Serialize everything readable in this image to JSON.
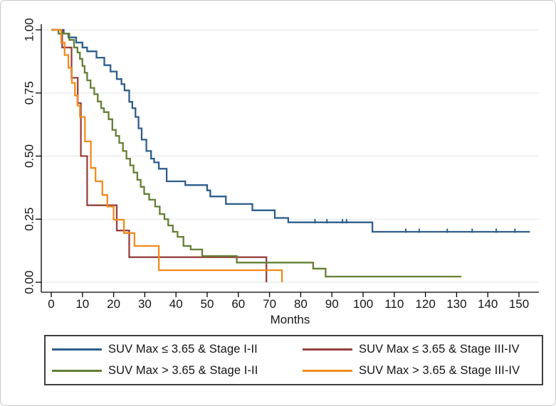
{
  "figure_title": "",
  "chart_data": {
    "type": "line",
    "subtype": "kaplan-meier-step",
    "title": "",
    "xlabel": "Months",
    "ylabel": "",
    "xlim": [
      0,
      157
    ],
    "ylim": [
      0,
      1.0
    ],
    "grid": "horizontal",
    "grid_color": "#e8eaeb",
    "axis_color": "#000000",
    "legend_position": "bottom-box",
    "x_ticks": [
      0,
      10,
      20,
      30,
      40,
      50,
      60,
      70,
      80,
      90,
      100,
      110,
      120,
      130,
      140,
      150
    ],
    "y_ticks": [
      {
        "value": 1.0,
        "label": "1.00"
      },
      {
        "value": 0.75,
        "label": "0.75"
      },
      {
        "value": 0.5,
        "label": "0.50"
      },
      {
        "value": 0.25,
        "label": "0.25"
      },
      {
        "value": 0.0,
        "label": "0.00"
      }
    ],
    "series": [
      {
        "name": "suv-le-3-65-stage-1-2",
        "label": "SUV Max ≤ 3.65 & Stage I-II",
        "color": "#2d5e8b",
        "step_points": [
          [
            0,
            1.0
          ],
          [
            4,
            0.985
          ],
          [
            5.5,
            0.97
          ],
          [
            8,
            0.95
          ],
          [
            10,
            0.93
          ],
          [
            11.5,
            0.915
          ],
          [
            14.5,
            0.89
          ],
          [
            17,
            0.86
          ],
          [
            19,
            0.835
          ],
          [
            21,
            0.805
          ],
          [
            22.5,
            0.785
          ],
          [
            23.5,
            0.76
          ],
          [
            25,
            0.715
          ],
          [
            26,
            0.69
          ],
          [
            27,
            0.655
          ],
          [
            28,
            0.61
          ],
          [
            29,
            0.565
          ],
          [
            30.5,
            0.52
          ],
          [
            32,
            0.49
          ],
          [
            33,
            0.475
          ],
          [
            34.5,
            0.45
          ],
          [
            37,
            0.4
          ],
          [
            43,
            0.385
          ],
          [
            50,
            0.364
          ],
          [
            51,
            0.34
          ],
          [
            56,
            0.31
          ],
          [
            64.5,
            0.285
          ],
          [
            71.7,
            0.255
          ],
          [
            76,
            0.2375
          ],
          [
            103,
            0.2
          ]
        ],
        "end_time": 153.5,
        "censor_times": [
          84.6,
          88.4,
          93.4,
          94.7,
          113.7,
          118,
          127,
          135,
          142.7,
          148.7
        ]
      },
      {
        "name": "suv-le-3-65-stage-3-4",
        "label": "SUV Max ≤ 3.65 & Stage III-IV",
        "color": "#97403e",
        "step_points": [
          [
            0,
            1.0
          ],
          [
            3.5,
            0.93
          ],
          [
            6.5,
            0.81
          ],
          [
            8.5,
            0.71
          ],
          [
            9.5,
            0.5
          ],
          [
            11.5,
            0.305
          ],
          [
            21,
            0.205
          ],
          [
            25,
            0.0995
          ],
          [
            69,
            0
          ]
        ],
        "end_time": 69,
        "censor_times": []
      },
      {
        "name": "suv-gt-3-65-stage-1-2",
        "label": "SUV Max > 3.65 & Stage I-II",
        "color": "#637f34",
        "step_points": [
          [
            0,
            1.0
          ],
          [
            2.3,
            0.985
          ],
          [
            5.8,
            0.96
          ],
          [
            7.3,
            0.93
          ],
          [
            8.4,
            0.91
          ],
          [
            9.2,
            0.885
          ],
          [
            10,
            0.857
          ],
          [
            10.7,
            0.83
          ],
          [
            11.5,
            0.8
          ],
          [
            12.6,
            0.77
          ],
          [
            13.8,
            0.745
          ],
          [
            14.9,
            0.716
          ],
          [
            16,
            0.69
          ],
          [
            16.9,
            0.674
          ],
          [
            18.4,
            0.646
          ],
          [
            19.6,
            0.604
          ],
          [
            20.7,
            0.58
          ],
          [
            21.8,
            0.552
          ],
          [
            23,
            0.52
          ],
          [
            24.1,
            0.49
          ],
          [
            25.3,
            0.463
          ],
          [
            26.4,
            0.435
          ],
          [
            27.6,
            0.406
          ],
          [
            28.7,
            0.378
          ],
          [
            29.8,
            0.35
          ],
          [
            31.4,
            0.327
          ],
          [
            33.3,
            0.3
          ],
          [
            34.8,
            0.27
          ],
          [
            36.3,
            0.25
          ],
          [
            37.5,
            0.225
          ],
          [
            39,
            0.2
          ],
          [
            40.5,
            0.18
          ],
          [
            42.4,
            0.144
          ],
          [
            44.7,
            0.13
          ],
          [
            48.4,
            0.104
          ],
          [
            59.5,
            0.078
          ],
          [
            84,
            0.054
          ],
          [
            88,
            0.0225
          ]
        ],
        "end_time": 131.5,
        "censor_times": []
      },
      {
        "name": "suv-gt-3-65-stage-3-4",
        "label": "SUV Max > 3.65 & Stage III-IV",
        "color": "#f08c1e",
        "step_points": [
          [
            0,
            1.0
          ],
          [
            3.2,
            0.95
          ],
          [
            4.3,
            0.9
          ],
          [
            5.5,
            0.85
          ],
          [
            6.6,
            0.79
          ],
          [
            7.6,
            0.74
          ],
          [
            8.4,
            0.7
          ],
          [
            9.2,
            0.655
          ],
          [
            10.8,
            0.558
          ],
          [
            12.7,
            0.453
          ],
          [
            14.2,
            0.4
          ],
          [
            16.4,
            0.346
          ],
          [
            18,
            0.3
          ],
          [
            20,
            0.248
          ],
          [
            23.3,
            0.195
          ],
          [
            26.7,
            0.144
          ],
          [
            34.5,
            0.048
          ],
          [
            74,
            0
          ]
        ],
        "end_time": 74,
        "censor_times": []
      }
    ]
  }
}
